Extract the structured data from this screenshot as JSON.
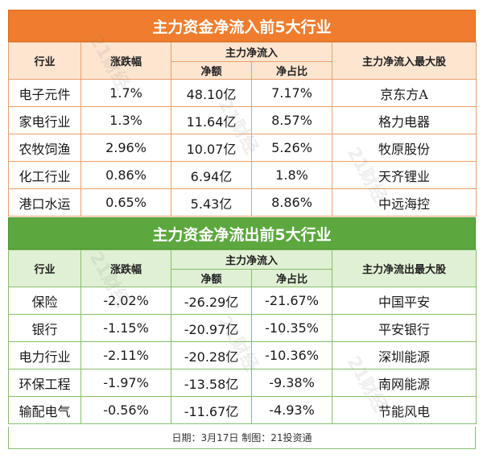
{
  "inflow": {
    "title": "主力资金净流入前5大行业",
    "headers": {
      "industry": "行业",
      "change": "涨跌幅",
      "group": "主力净流入",
      "amount": "净额",
      "ratio": "净占比",
      "top_stock": "主力净流入最大股"
    },
    "rows": [
      {
        "industry": "电子元件",
        "change": "1.7%",
        "amount": "48.10亿",
        "ratio": "7.17%",
        "stock": "京东方A"
      },
      {
        "industry": "家电行业",
        "change": "1.3%",
        "amount": "11.64亿",
        "ratio": "8.57%",
        "stock": "格力电器"
      },
      {
        "industry": "农牧饲渔",
        "change": "2.96%",
        "amount": "10.07亿",
        "ratio": "5.26%",
        "stock": "牧原股份"
      },
      {
        "industry": "化工行业",
        "change": "0.86%",
        "amount": "6.94亿",
        "ratio": "1.8%",
        "stock": "天齐锂业"
      },
      {
        "industry": "港口水运",
        "change": "0.65%",
        "amount": "5.43亿",
        "ratio": "8.86%",
        "stock": "中远海控"
      }
    ]
  },
  "outflow": {
    "title": "主力资金净流出前5大行业",
    "headers": {
      "industry": "行业",
      "change": "涨跌幅",
      "group": "主力净流入",
      "amount": "净额",
      "ratio": "净占比",
      "top_stock": "主力净流出最大股"
    },
    "rows": [
      {
        "industry": "保险",
        "change": "-2.02%",
        "amount": "-26.29亿",
        "ratio": "-21.67%",
        "stock": "中国平安"
      },
      {
        "industry": "银行",
        "change": "-1.15%",
        "amount": "-20.97亿",
        "ratio": "-10.35%",
        "stock": "平安银行"
      },
      {
        "industry": "电力行业",
        "change": "-2.11%",
        "amount": "-20.28亿",
        "ratio": "-10.36%",
        "stock": "深圳能源"
      },
      {
        "industry": "环保工程",
        "change": "-1.97%",
        "amount": "-13.58亿",
        "ratio": "-9.38%",
        "stock": "南网能源"
      },
      {
        "industry": "输配电气",
        "change": "-0.56%",
        "amount": "-11.67亿",
        "ratio": "-4.93%",
        "stock": "节能风电"
      }
    ]
  },
  "footer": "日期：3月17日 制图：21投资通",
  "watermark": "21财经",
  "colors": {
    "inflow_banner": "#ef7d2d",
    "outflow_banner": "#5ca83f"
  }
}
